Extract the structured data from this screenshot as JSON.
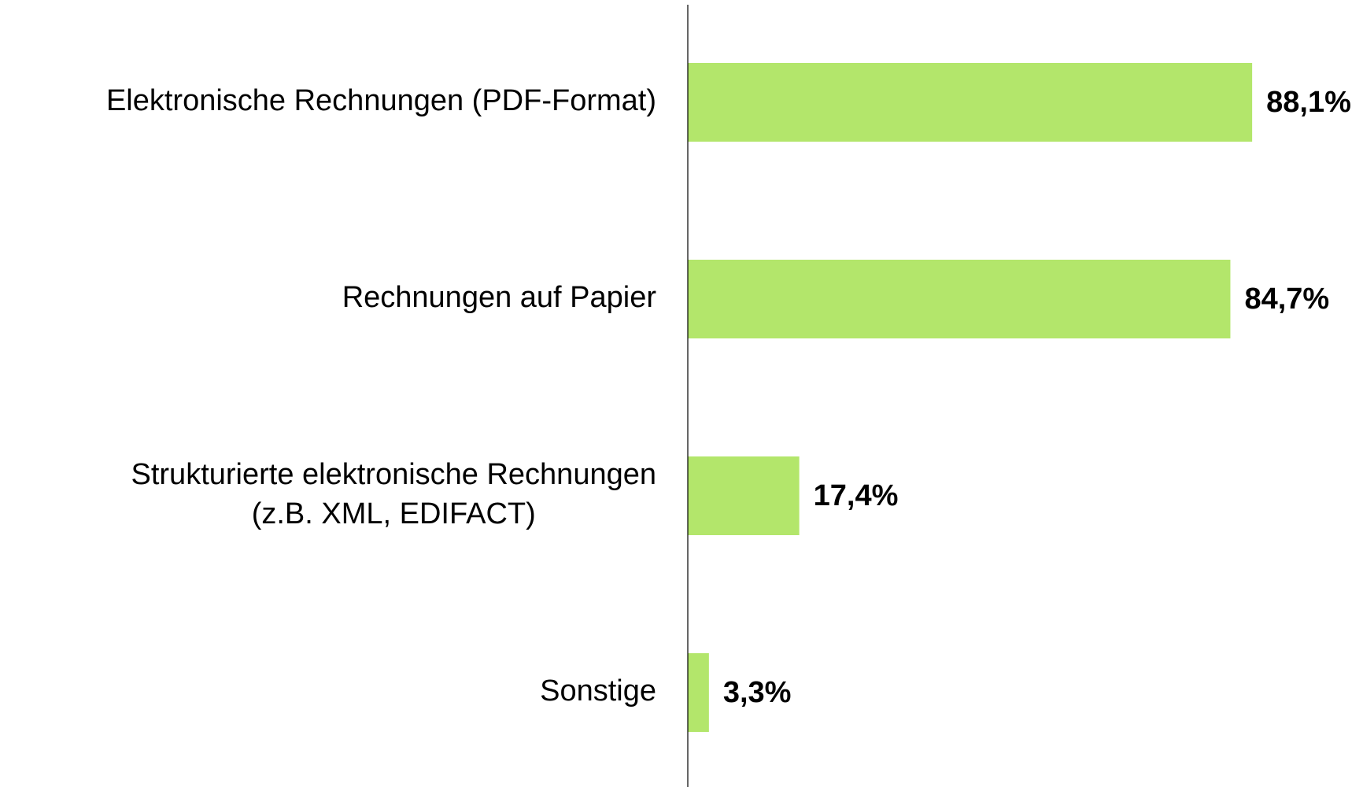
{
  "chart_data": {
    "type": "bar",
    "orientation": "horizontal",
    "categories": [
      "Elektronische Rechnungen (PDF-Format)",
      "Rechnungen auf Papier",
      "Strukturierte elektronische Rechnungen\n(z.B. XML, EDIFACT)",
      "Sonstige"
    ],
    "values": [
      88.1,
      84.7,
      17.4,
      3.3
    ],
    "value_labels": [
      "88,1%",
      "84,7%",
      "17,4%",
      "3,3%"
    ],
    "color": "#b3e66b"
  }
}
